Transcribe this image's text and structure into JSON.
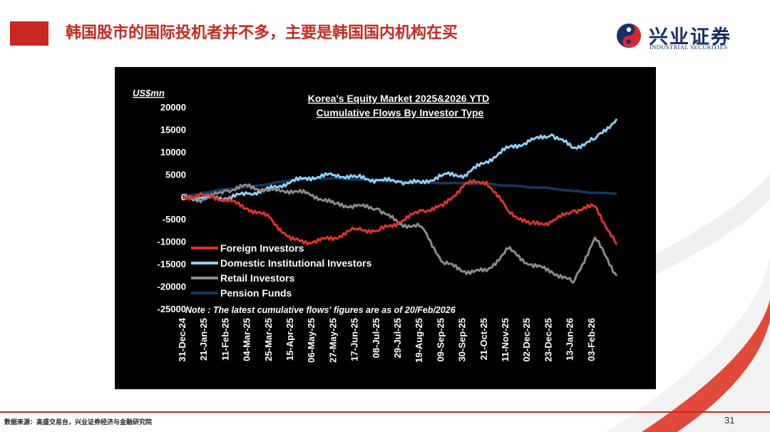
{
  "slide": {
    "title": "韩国股市的国际投机者并不多，主要是韩国国内机构在买",
    "source": "数据来源：高盛交易台，兴业证券经济与金融研究院",
    "page_number": "31",
    "accent_color": "#c8281f"
  },
  "logo": {
    "name_cn": "兴业证券",
    "name_en": "INDUSTRIAL SECURITIES",
    "brand_color": "#1a2e6c"
  },
  "chart_data": {
    "type": "line",
    "title": "Korea's Equity Market 2025&2026 YTD",
    "subtitle": "Cumulative Flows By Investor Type",
    "ylabel": "US$mn",
    "ylim": [
      -25000,
      20000
    ],
    "yticks": [
      "20000",
      "15000",
      "10000",
      "5000",
      "0",
      "-5000",
      "-10000",
      "-15000",
      "-20000",
      "-25000"
    ],
    "x": [
      "31-Dec-24",
      "21-Jan-25",
      "11-Feb-25",
      "04-Mar-25",
      "25-Mar-25",
      "15-Apr-25",
      "06-May-25",
      "27-May-25",
      "17-Jun-25",
      "08-Jul-25",
      "29-Jul-25",
      "19-Aug-25",
      "09-Sep-25",
      "30-Sep-25",
      "21-Oct-25",
      "11-Nov-25",
      "02-Dec-25",
      "23-Dec-25",
      "13-Jan-26",
      "03-Feb-26",
      "20-Feb-26"
    ],
    "grid": false,
    "legend_position": "lower-left",
    "note": "Note : The latest cumulative flows' figures are as of 20/Feb/2026",
    "background": "#000000",
    "series": [
      {
        "name": "Foreign Investors",
        "color": "#e0322b",
        "values": [
          0,
          500,
          -500,
          -2500,
          -4500,
          -9500,
          -10000,
          -9000,
          -7000,
          -7500,
          -5500,
          -3000,
          -2000,
          3000,
          3500,
          -3000,
          -6000,
          -5500,
          -3000,
          -2000,
          -10500
        ]
      },
      {
        "name": "Domestic Institutional Investors",
        "color": "#8ed0f5",
        "values": [
          0,
          0,
          -200,
          800,
          1800,
          3500,
          4500,
          5000,
          4500,
          3800,
          3500,
          3200,
          5000,
          5000,
          8000,
          11000,
          12500,
          14000,
          11000,
          13000,
          17500
        ]
      },
      {
        "name": "Retail Investors",
        "color": "#8c8c8c",
        "values": [
          0,
          -500,
          1500,
          2500,
          1500,
          1500,
          500,
          -1500,
          -2000,
          -2500,
          -6000,
          -6500,
          -14500,
          -16500,
          -16500,
          -11500,
          -15000,
          -16500,
          -19000,
          -9000,
          -17500
        ]
      },
      {
        "name": "Pension Funds",
        "color": "#16375e",
        "values": [
          0,
          1000,
          1800,
          2300,
          3000,
          3800,
          4200,
          4200,
          4000,
          3800,
          3500,
          3300,
          3200,
          3100,
          3000,
          2600,
          2300,
          2000,
          1400,
          1000,
          800
        ]
      }
    ]
  }
}
